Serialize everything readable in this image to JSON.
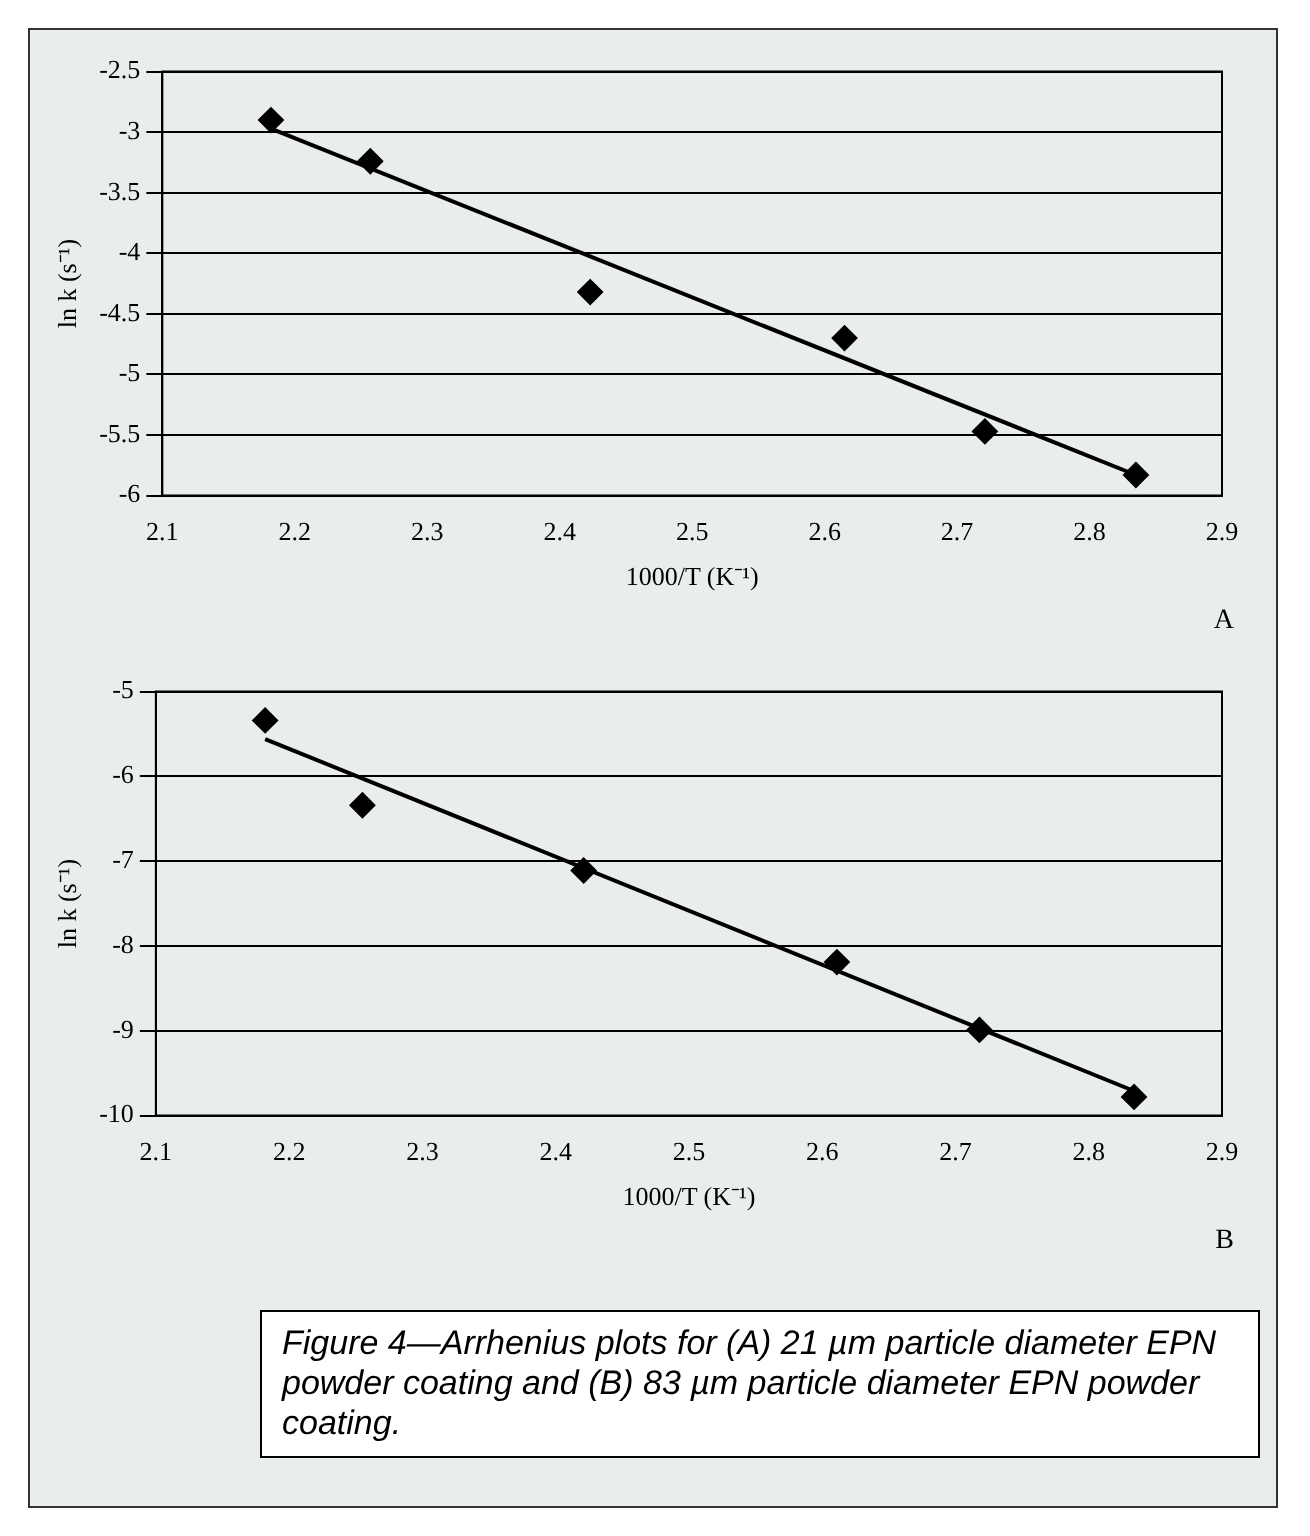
{
  "chart_data": [
    {
      "type": "scatter",
      "xlabel": "1000/T (K⁻¹)",
      "ylabel": "ln k (s⁻¹)",
      "xlim": [
        2.1,
        2.9
      ],
      "xticks": [
        2.1,
        2.2,
        2.3,
        2.4,
        2.5,
        2.6,
        2.7,
        2.8,
        2.9
      ],
      "ylim": [
        -6,
        -2.5
      ],
      "yticks": [
        -6,
        -5.5,
        -5,
        -4.5,
        -4,
        -3.5,
        -3,
        -2.5
      ],
      "grid": "y",
      "legend": false,
      "marker": "diamond",
      "annotations": [
        "A"
      ],
      "series": [
        {
          "color": "#000000",
          "x": [
            2.182,
            2.257,
            2.423,
            2.615,
            2.721,
            2.835
          ],
          "values": [
            -2.9,
            -3.24,
            -4.32,
            -4.7,
            -5.47,
            -5.83
          ]
        },
        {
          "type": "line",
          "marker": "none",
          "line_style": "solid",
          "color": "#000000",
          "x": [
            2.182,
            2.835
          ],
          "values": [
            -2.97,
            -5.83
          ]
        }
      ]
    },
    {
      "type": "scatter",
      "xlabel": "1000/T (K⁻¹)",
      "ylabel": "ln k (s⁻¹)",
      "xlim": [
        2.1,
        2.9
      ],
      "xticks": [
        2.1,
        2.2,
        2.3,
        2.4,
        2.5,
        2.6,
        2.7,
        2.8,
        2.9
      ],
      "ylim": [
        -10,
        -5
      ],
      "yticks": [
        -10,
        -9,
        -8,
        -7,
        -6,
        -5
      ],
      "grid": "y",
      "legend": false,
      "marker": "diamond",
      "annotations": [
        "B",
        "Figure 4—Arrhenius plots for (A) 21 µm particle diameter EPN powder coating and (B) 83 µm particle diameter EPN powder coating."
      ],
      "series": [
        {
          "color": "#000000",
          "x": [
            2.182,
            2.255,
            2.421,
            2.611,
            2.718,
            2.834
          ],
          "values": [
            -5.34,
            -6.34,
            -7.11,
            -8.19,
            -8.99,
            -9.78
          ]
        },
        {
          "type": "line",
          "marker": "none",
          "line_style": "solid",
          "color": "#000000",
          "x": [
            2.182,
            2.834
          ],
          "values": [
            -5.56,
            -9.71
          ]
        }
      ]
    }
  ]
}
